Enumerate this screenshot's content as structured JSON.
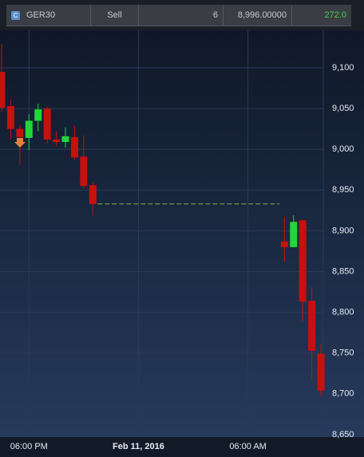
{
  "header": {
    "symbol": "GER30",
    "side": "Sell",
    "quantity": "6",
    "price": "8,996.00000",
    "pnl": "272.0"
  },
  "chart_data": {
    "type": "candlestick",
    "categories": [
      null,
      null,
      null,
      "06:00 PM",
      null,
      null,
      null,
      null,
      null,
      null,
      null,
      null,
      null,
      null,
      null,
      "Feb 11, 2016",
      null,
      null,
      null,
      null,
      null,
      null,
      null,
      null,
      null,
      null,
      null,
      "06:00 AM",
      null,
      null,
      null,
      null,
      null,
      null,
      null,
      null
    ],
    "open": [
      9095,
      9053,
      9025,
      9014,
      9035,
      9050,
      9012,
      9009,
      9015,
      8991,
      8956,
      null,
      null,
      null,
      null,
      null,
      null,
      null,
      null,
      null,
      null,
      null,
      null,
      null,
      null,
      null,
      null,
      null,
      null,
      null,
      null,
      8887,
      8880,
      8913,
      8814,
      8749
    ],
    "high": [
      9129,
      9061,
      9030,
      9043,
      9056,
      9052,
      9022,
      9027,
      9029,
      9017,
      8960,
      null,
      null,
      null,
      null,
      null,
      null,
      null,
      null,
      null,
      null,
      null,
      null,
      null,
      null,
      null,
      null,
      null,
      null,
      null,
      null,
      8917,
      8919,
      8913,
      8831,
      8762
    ],
    "low": [
      9046,
      9012,
      8981,
      8999,
      9022,
      9007,
      9004,
      9002,
      8987,
      8952,
      8919,
      null,
      null,
      null,
      null,
      null,
      null,
      null,
      null,
      null,
      null,
      null,
      null,
      null,
      null,
      null,
      null,
      null,
      null,
      null,
      null,
      8862,
      8880,
      8789,
      8718,
      8697
    ],
    "close": [
      9051,
      9025,
      9015,
      9035,
      9049,
      9012,
      9009,
      9016,
      8990,
      8955,
      8933,
      null,
      null,
      null,
      null,
      null,
      null,
      null,
      null,
      null,
      null,
      null,
      null,
      null,
      null,
      null,
      null,
      null,
      null,
      null,
      null,
      8880,
      8911,
      8813,
      8753,
      8704
    ],
    "up_color": "#22d63a",
    "down_color": "#c8100c",
    "ylim": [
      8647,
      9146
    ],
    "yticks": [
      {
        "value": 8650,
        "label": "8,650"
      },
      {
        "value": 8700,
        "label": "8,700"
      },
      {
        "value": 8750,
        "label": "8,750"
      },
      {
        "value": 8800,
        "label": "8,800"
      },
      {
        "value": 8850,
        "label": "8,850"
      },
      {
        "value": 8900,
        "label": "8,900"
      },
      {
        "value": 8950,
        "label": "8,950"
      },
      {
        "value": 9000,
        "label": "9,000"
      },
      {
        "value": 9050,
        "label": "9,050"
      },
      {
        "value": 9100,
        "label": "9,100"
      }
    ],
    "grid": true
  }
}
